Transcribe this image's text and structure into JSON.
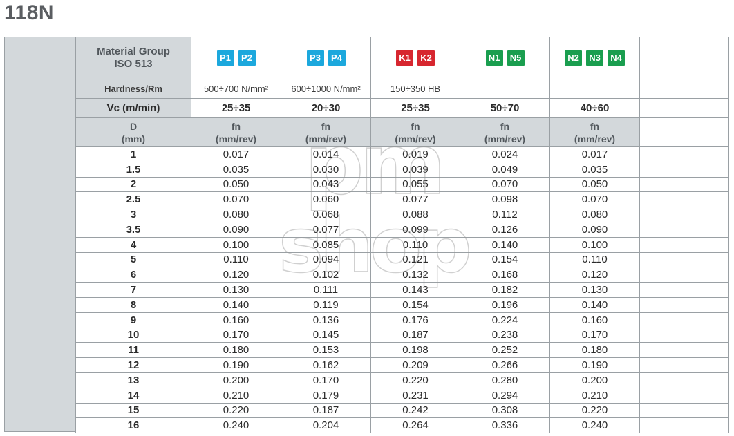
{
  "title": "118N",
  "labels": {
    "material_group_line1": "Material Group",
    "material_group_line2": "ISO 513",
    "hardness": "Hardness/Rm",
    "vc": "Vc (m/min)",
    "d_line1": "D",
    "d_line2": "(mm)",
    "fn_line1": "fn",
    "fn_line2": "(mm/rev)"
  },
  "columns": [
    {
      "badges": [
        "P1",
        "P2"
      ],
      "color": "#1ca8dd",
      "hardness": "500÷700 N/mm²",
      "vc": "25÷35"
    },
    {
      "badges": [
        "P3",
        "P4"
      ],
      "color": "#1ca8dd",
      "hardness": "600÷1000 N/mm²",
      "vc": "20÷30"
    },
    {
      "badges": [
        "K1",
        "K2"
      ],
      "color": "#d7262f",
      "hardness": "150÷350 HB",
      "vc": "25÷35"
    },
    {
      "badges": [
        "N1",
        "N5"
      ],
      "color": "#1a9e4f",
      "hardness": "",
      "vc": "50÷70"
    },
    {
      "badges": [
        "N2",
        "N3",
        "N4"
      ],
      "color": "#1a9e4f",
      "hardness": "",
      "vc": "40÷60"
    }
  ],
  "rows": [
    {
      "d": "1",
      "fn": [
        "0.017",
        "0.014",
        "0.019",
        "0.024",
        "0.017"
      ]
    },
    {
      "d": "1.5",
      "fn": [
        "0.035",
        "0.030",
        "0.039",
        "0.049",
        "0.035"
      ]
    },
    {
      "d": "2",
      "fn": [
        "0.050",
        "0.043",
        "0.055",
        "0.070",
        "0.050"
      ]
    },
    {
      "d": "2.5",
      "fn": [
        "0.070",
        "0.060",
        "0.077",
        "0.098",
        "0.070"
      ]
    },
    {
      "d": "3",
      "fn": [
        "0.080",
        "0.068",
        "0.088",
        "0.112",
        "0.080"
      ]
    },
    {
      "d": "3.5",
      "fn": [
        "0.090",
        "0.077",
        "0.099",
        "0.126",
        "0.090"
      ]
    },
    {
      "d": "4",
      "fn": [
        "0.100",
        "0.085",
        "0.110",
        "0.140",
        "0.100"
      ]
    },
    {
      "d": "5",
      "fn": [
        "0.110",
        "0.094",
        "0.121",
        "0.154",
        "0.110"
      ]
    },
    {
      "d": "6",
      "fn": [
        "0.120",
        "0.102",
        "0.132",
        "0.168",
        "0.120"
      ]
    },
    {
      "d": "7",
      "fn": [
        "0.130",
        "0.111",
        "0.143",
        "0.182",
        "0.130"
      ]
    },
    {
      "d": "8",
      "fn": [
        "0.140",
        "0.119",
        "0.154",
        "0.196",
        "0.140"
      ]
    },
    {
      "d": "9",
      "fn": [
        "0.160",
        "0.136",
        "0.176",
        "0.224",
        "0.160"
      ]
    },
    {
      "d": "10",
      "fn": [
        "0.170",
        "0.145",
        "0.187",
        "0.238",
        "0.170"
      ]
    },
    {
      "d": "11",
      "fn": [
        "0.180",
        "0.153",
        "0.198",
        "0.252",
        "0.180"
      ]
    },
    {
      "d": "12",
      "fn": [
        "0.190",
        "0.162",
        "0.209",
        "0.266",
        "0.190"
      ]
    },
    {
      "d": "13",
      "fn": [
        "0.200",
        "0.170",
        "0.220",
        "0.280",
        "0.200"
      ]
    },
    {
      "d": "14",
      "fn": [
        "0.210",
        "0.179",
        "0.231",
        "0.294",
        "0.210"
      ]
    },
    {
      "d": "15",
      "fn": [
        "0.220",
        "0.187",
        "0.242",
        "0.308",
        "0.220"
      ]
    },
    {
      "d": "16",
      "fn": [
        "0.240",
        "0.204",
        "0.264",
        "0.336",
        "0.240"
      ]
    }
  ],
  "watermark": {
    "line1": "pm",
    "line2": "shop"
  }
}
